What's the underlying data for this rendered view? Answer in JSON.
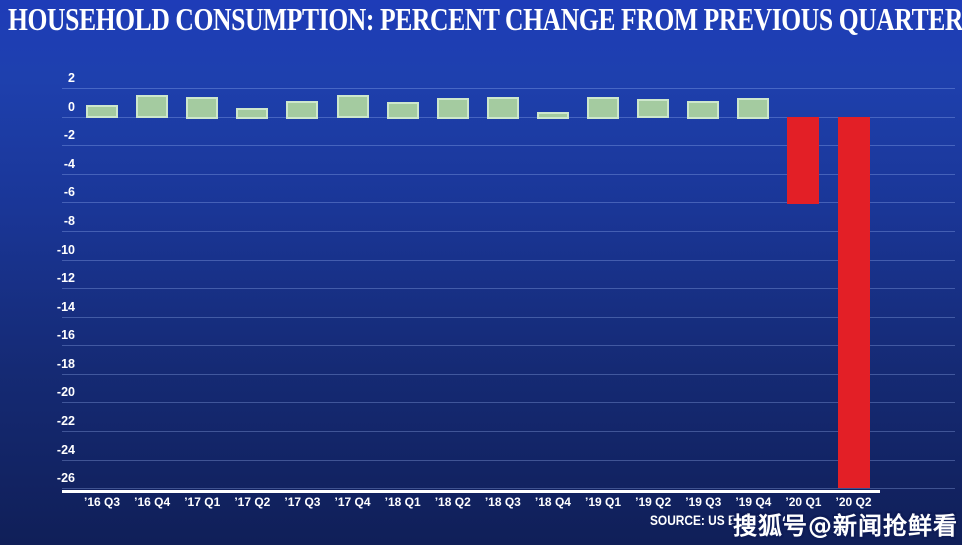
{
  "chart_data": {
    "type": "bar",
    "title": "HOUSEHOLD CONSUMPTION: PERCENT CHANGE FROM PREVIOUS QUARTER",
    "xlabel": "",
    "ylabel": "",
    "categories": [
      "’16 Q3",
      "’16 Q4",
      "’17 Q1",
      "’17 Q2",
      "’17 Q3",
      "’17 Q4",
      "’18 Q1",
      "’18 Q2",
      "’18 Q3",
      "’18 Q4",
      "’19 Q1",
      "’19 Q2",
      "’19 Q3",
      "’19 Q4",
      "’20 Q1",
      "’20 Q2"
    ],
    "values": [
      0.8,
      1.5,
      1.4,
      0.6,
      1.1,
      1.5,
      1.0,
      1.3,
      1.4,
      0.3,
      1.4,
      1.2,
      1.1,
      1.3,
      -6.1,
      -26.0
    ],
    "yticks": [
      2,
      0,
      -2,
      -4,
      -6,
      -8,
      -10,
      -12,
      -14,
      -16,
      -18,
      -20,
      -22,
      -24,
      -26
    ],
    "ylim": [
      -26.5,
      2
    ],
    "grid": "horizontal",
    "legend": "none",
    "colors": {
      "positive_fill": "#a4cba0",
      "positive_border": "#cde7cc",
      "negative_fill": "#e31f26",
      "background_top": "#1e3cb8",
      "background_bottom": "#101f58",
      "text": "#ffffff"
    }
  },
  "source": {
    "text": "SOURCE: US BUREAU O"
  },
  "watermark": {
    "text": "搜狐号@新闻抢鲜看"
  }
}
